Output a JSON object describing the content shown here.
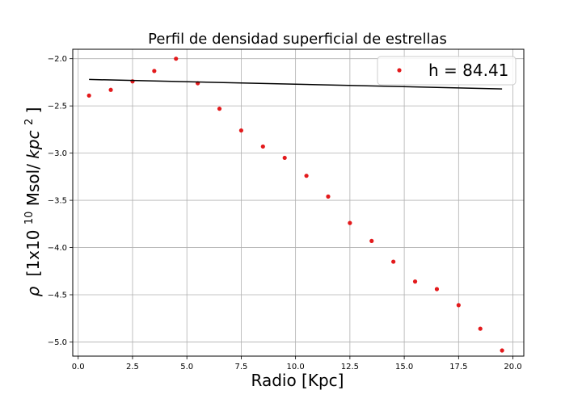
{
  "chart_data": {
    "type": "scatter",
    "title": "Perfil de densidad superficial de estrellas",
    "xlabel": "Radio [Kpc]",
    "ylabel": {
      "symbol": "ρ",
      "pre": "[1x10",
      "exp10": "10",
      "mid": " Msol/",
      "unit": "kpc",
      "exp2": "2",
      "post": "]"
    },
    "xlim": [
      -0.25,
      20.5
    ],
    "ylim": [
      -5.15,
      -1.9
    ],
    "xticks": [
      0.0,
      2.5,
      5.0,
      7.5,
      10.0,
      12.5,
      15.0,
      17.5,
      20.0
    ],
    "xtick_labels": [
      "0.0",
      "2.5",
      "5.0",
      "7.5",
      "10.0",
      "12.5",
      "15.0",
      "17.5",
      "20.0"
    ],
    "yticks": [
      -2.0,
      -2.5,
      -3.0,
      -3.5,
      -4.0,
      -4.5,
      -5.0
    ],
    "ytick_labels": [
      "−2.0",
      "−2.5",
      "−3.0",
      "−3.5",
      "−4.0",
      "−4.5",
      "−5.0"
    ],
    "grid": true,
    "legend_position": "top-right",
    "series": [
      {
        "name": "h = 84.41",
        "kind": "points",
        "color": "#e31a1c",
        "x": [
          0.5,
          1.5,
          2.5,
          3.5,
          4.5,
          5.5,
          6.5,
          7.5,
          8.5,
          9.5,
          10.5,
          11.5,
          12.5,
          13.5,
          14.5,
          15.5,
          16.5,
          17.5,
          18.5,
          19.5
        ],
        "y": [
          -2.39,
          -2.33,
          -2.24,
          -2.13,
          -2.0,
          -2.26,
          -2.53,
          -2.76,
          -2.93,
          -3.05,
          -3.24,
          -3.46,
          -3.74,
          -3.93,
          -4.15,
          -4.36,
          -4.44,
          -4.61,
          -4.86,
          -5.09
        ]
      },
      {
        "kind": "line",
        "color": "#000000",
        "x": [
          0.5,
          19.5
        ],
        "y": [
          -2.22,
          -2.32
        ]
      }
    ]
  }
}
